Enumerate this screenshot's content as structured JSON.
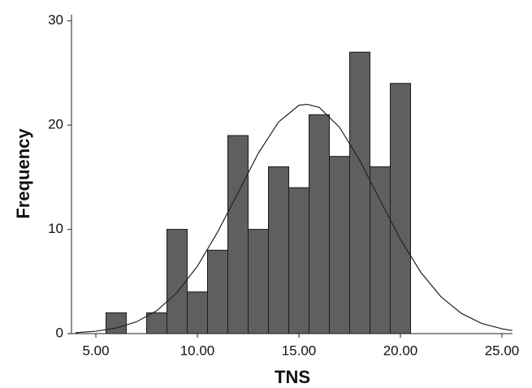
{
  "chart_data": {
    "type": "histogram",
    "x_label": "TNS",
    "y_label": "Frequency",
    "bins": [
      5.5,
      6.5,
      7.5,
      8.5,
      9.5,
      10.5,
      11.5,
      12.5,
      13.5,
      14.5,
      15.5,
      16.5,
      17.5,
      18.5,
      19.5,
      20.5
    ],
    "values": [
      2,
      0,
      2,
      10,
      4,
      8,
      19,
      10,
      16,
      14,
      21,
      17,
      27,
      16,
      24
    ],
    "color": "#5f5f5f",
    "curve": {
      "color": "#222222",
      "x": [
        4,
        5,
        6,
        7,
        8,
        9,
        10,
        11,
        12,
        13,
        14,
        15,
        15.4,
        16,
        17,
        18,
        19,
        20,
        21,
        22,
        23,
        24,
        25,
        25.5
      ],
      "values": [
        0.09,
        0.23,
        0.54,
        1.13,
        2.2,
        3.94,
        6.46,
        9.76,
        13.5,
        17.3,
        20.3,
        21.9,
        22,
        21.7,
        19.8,
        16.6,
        12.8,
        9.04,
        5.89,
        3.53,
        1.94,
        0.98,
        0.46,
        0.3
      ]
    },
    "xlim": [
      3.8,
      25.52
    ],
    "ylim": [
      0,
      30.6
    ],
    "xticks": [
      {
        "value": 5,
        "label": "5.00"
      },
      {
        "value": 10,
        "label": "10.00"
      },
      {
        "value": 15,
        "label": "15.00"
      },
      {
        "value": 20,
        "label": "20.00"
      },
      {
        "value": 25,
        "label": "25.00"
      }
    ],
    "yticks": [
      0,
      10,
      20,
      30
    ]
  }
}
